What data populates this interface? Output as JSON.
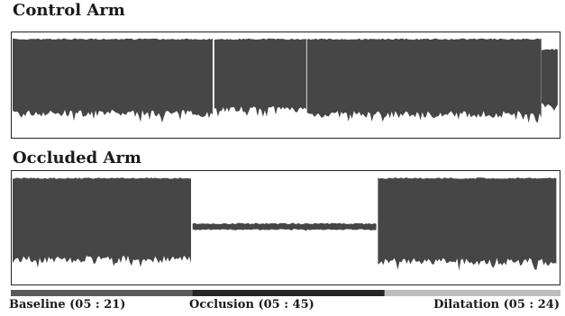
{
  "chart_data": [
    {
      "type": "area",
      "title": "Control Arm",
      "segments": [
        {
          "x_start": 0.0,
          "x_end": 0.37,
          "upper": 0.95,
          "lower": 0.22,
          "lower_jitter": 0.07
        },
        {
          "x_start": 0.37,
          "x_end": 0.54,
          "upper": 0.95,
          "lower": 0.26,
          "lower_jitter": 0.06
        },
        {
          "x_start": 0.54,
          "x_end": 0.97,
          "upper": 0.95,
          "lower": 0.21,
          "lower_jitter": 0.07
        },
        {
          "x_start": 0.97,
          "x_end": 1.0,
          "upper": 0.85,
          "lower": 0.3,
          "lower_jitter": 0.05
        }
      ],
      "ylim": [
        0,
        1
      ],
      "grid": false,
      "color": "#464646"
    },
    {
      "type": "area",
      "title": "Occluded Arm",
      "segments": [
        {
          "x_start": 0.0,
          "x_end": 0.33,
          "upper": 0.95,
          "lower": 0.21,
          "lower_jitter": 0.07
        },
        {
          "x_start": 0.33,
          "x_end": 0.67,
          "upper": 0.54,
          "lower": 0.48,
          "lower_jitter": 0.01
        },
        {
          "x_start": 0.67,
          "x_end": 1.0,
          "upper": 0.95,
          "lower": 0.19,
          "lower_jitter": 0.07
        }
      ],
      "ylim": [
        0,
        1
      ],
      "grid": false,
      "color": "#464646"
    }
  ],
  "phases": [
    {
      "label": "Baseline (05 : 21)",
      "color": "#5a5a5a"
    },
    {
      "label": "Occlusion (05 : 45)",
      "color": "#262626"
    },
    {
      "label": "Dilatation (05 : 24)",
      "color": "#bdbdbd"
    }
  ]
}
